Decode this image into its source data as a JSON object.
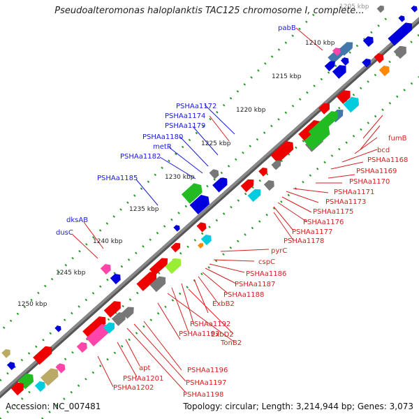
{
  "title": "Pseudoalteromonas haloplanktis TAC125 chromosome I, complete...",
  "footer": {
    "accession": "Accession: NC_007481",
    "topology": "Topology: circular; Length: 3,214,944 bp; Genes: 3,073"
  },
  "kbp_labels": [
    "1205 kbp",
    "1210 kbp",
    "1215 kbp",
    "1220 kbp",
    "1225 kbp",
    "1230 kbp",
    "1235 kbp",
    "1240 kbp",
    "1245 kbp",
    "1250 kbp"
  ],
  "blue_labels": [
    "pabB",
    "PSHAa1172",
    "PSHAa1174",
    "PSHAa1179",
    "PSHAa1180",
    "metR",
    "PSHAa1182",
    "PSHAa1185",
    "dksAB",
    "dusC"
  ],
  "red_labels": [
    "fumB",
    "bcd",
    "PSHAa1168",
    "PSHAa1169",
    "PSHAa1170",
    "PSHAa1171",
    "PSHAa1173",
    "PSHAa1175",
    "PSHAa1176",
    "PSHAa1177",
    "PSHAa1178",
    "pyrC",
    "cspC",
    "PSHAa1186",
    "PSHAa1187",
    "PSHAa1188",
    "ExbB2",
    "PSHAa1192",
    "ExbD2",
    "PSHAa1193",
    "TonB2",
    "PSHAa1196",
    "PSHAa1197",
    "PSHAa1198",
    "apt",
    "PSHAa1201",
    "PSHAa1202"
  ],
  "colors": {
    "red": "#ee0000",
    "blue": "#0000dd",
    "green": "#22bb22",
    "cyan": "#00ccdd",
    "gray": "#777777",
    "pink": "#ff44aa",
    "lime": "#99ee33",
    "olive": "#bbaa66",
    "orange": "#ff8800",
    "steel": "#4477aa",
    "backbone": "#888888",
    "blue_text": "#1a1adb",
    "red_text": "#d42020",
    "dots": "#229922"
  }
}
